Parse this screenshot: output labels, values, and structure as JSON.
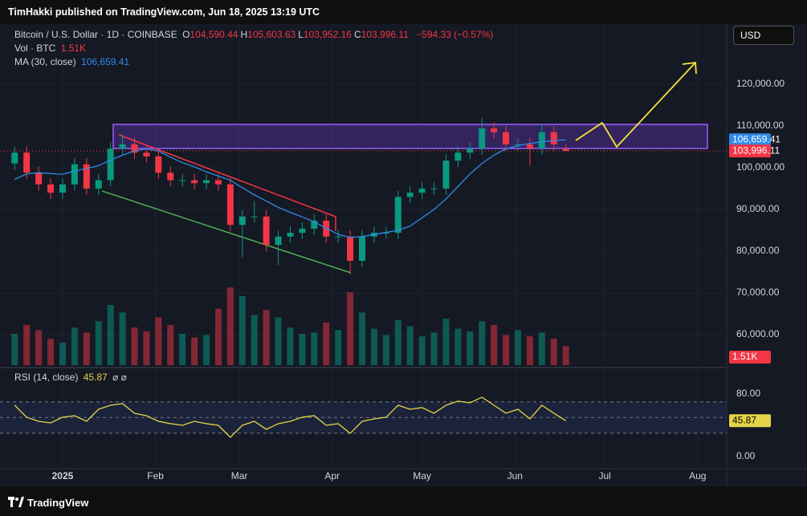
{
  "header": {
    "publisher": "TimHakki published on TradingView.com, Jun 18, 2025 13:19 UTC",
    "currency": "USD",
    "footer": "TradingView"
  },
  "chart_data": [
    {
      "type": "candlestick",
      "title": "Bitcoin / U.S. Dollar · 1D · COINBASE",
      "ohlc_legend": [
        {
          "label": "O",
          "value": "104,590.44"
        },
        {
          "label": "H",
          "value": "105,603.63"
        },
        {
          "label": "L",
          "value": "103,952.16"
        },
        {
          "label": "C",
          "value": "103,996.11"
        }
      ],
      "change": "−594.33 (−0.57%)",
      "last_label": "103,996.11",
      "up_color": "#089981",
      "down_color": "#f23645",
      "x": [
        -16,
        -12,
        -8,
        -4,
        0,
        4,
        8,
        12,
        16,
        20,
        24,
        28,
        32,
        36,
        40,
        44,
        48,
        52,
        56,
        60,
        64,
        68,
        72,
        76,
        80,
        84,
        88,
        92,
        96,
        100,
        104,
        108,
        112,
        116,
        120,
        124,
        128,
        132,
        136,
        140,
        144,
        148,
        152,
        156,
        160,
        164,
        168
      ],
      "open": [
        101000,
        103600,
        98800,
        96000,
        94000,
        96000,
        100800,
        95000,
        97000,
        104600,
        105600,
        103600,
        102700,
        98800,
        97000,
        97000,
        96300,
        97000,
        96000,
        86300,
        88300,
        88300,
        81500,
        83500,
        84400,
        85400,
        87300,
        83500,
        83500,
        77700,
        83500,
        84400,
        84400,
        93000,
        94000,
        95000,
        95000,
        101700,
        103600,
        104600,
        109400,
        108500,
        105600,
        105600,
        104600,
        108500,
        104590.44
      ],
      "high": [
        105100,
        105100,
        100300,
        97500,
        97500,
        102300,
        102300,
        98500,
        106100,
        108000,
        107100,
        105100,
        104200,
        100300,
        98500,
        98500,
        98500,
        98500,
        97500,
        89800,
        92000,
        89800,
        85000,
        85900,
        86900,
        88800,
        88800,
        85000,
        85000,
        85000,
        85900,
        85900,
        94500,
        95500,
        96500,
        96500,
        103200,
        105100,
        106100,
        111900,
        110900,
        110000,
        107100,
        107100,
        110500,
        110000,
        105603.63
      ],
      "low": [
        99500,
        97300,
        94500,
        92500,
        92500,
        94500,
        93500,
        93500,
        95500,
        103100,
        102100,
        101200,
        97300,
        95500,
        95500,
        94800,
        94800,
        94500,
        84800,
        78500,
        86800,
        80000,
        76600,
        82000,
        82900,
        83900,
        82000,
        82000,
        74500,
        76200,
        82000,
        82900,
        82900,
        91500,
        92500,
        93500,
        93500,
        100200,
        102100,
        103100,
        107000,
        104100,
        104100,
        100500,
        103100,
        104100,
        103952.16
      ],
      "close": [
        103600,
        98800,
        96000,
        94000,
        96000,
        100800,
        95000,
        97000,
        104600,
        105600,
        103600,
        102700,
        98800,
        97000,
        97000,
        96300,
        97000,
        96000,
        86300,
        88300,
        88300,
        81500,
        83500,
        84400,
        85400,
        87300,
        83500,
        83500,
        77700,
        83500,
        84400,
        84400,
        93000,
        94000,
        95000,
        95000,
        101700,
        103600,
        104600,
        109400,
        108500,
        105600,
        105600,
        104600,
        108500,
        105600,
        103996.11
      ],
      "series": [
        {
          "name": "MA (30, close)",
          "color": "#2f8ae8",
          "value_label": "106,659.41",
          "values": [
            97200,
            98500,
            98800,
            98600,
            98400,
            99200,
            99800,
            100500,
            101800,
            103000,
            104000,
            104500,
            104000,
            102500,
            101200,
            100200,
            99000,
            98000,
            97000,
            95200,
            93500,
            92000,
            90500,
            89300,
            88200,
            87000,
            85500,
            84000,
            83300,
            83500,
            84000,
            84500,
            85000,
            86000,
            88000,
            90000,
            92500,
            95500,
            98500,
            101000,
            103000,
            104500,
            105300,
            105800,
            106200,
            106500,
            106659.41
          ]
        }
      ],
      "xlim": [
        -20.9,
        221.7
      ],
      "xticks": [
        {
          "value": 0,
          "label": "2025"
        },
        {
          "value": 31,
          "label": "Feb"
        },
        {
          "value": 59,
          "label": "Mar"
        },
        {
          "value": 90,
          "label": "Apr"
        },
        {
          "value": 120,
          "label": "May"
        },
        {
          "value": 151,
          "label": "Jun"
        },
        {
          "value": 181,
          "label": "Jul"
        },
        {
          "value": 212,
          "label": "Aug"
        }
      ],
      "ylim": [
        52700,
        134400
      ],
      "yticks": [
        {
          "value": 60000,
          "label": "60,000.00"
        },
        {
          "value": 70000,
          "label": "70,000.00"
        },
        {
          "value": 80000,
          "label": "80,000.00"
        },
        {
          "value": 90000,
          "label": "90,000.00"
        },
        {
          "value": 100000,
          "label": "100,000.00"
        },
        {
          "value": 110000,
          "label": "110,000.00"
        },
        {
          "value": 120000,
          "label": "120,000.00"
        }
      ],
      "grid": true
    },
    {
      "type": "bar",
      "title": "Vol · BTC",
      "value_label": "1.51K",
      "values": [
        2.5,
        3.2,
        2.8,
        2.1,
        1.8,
        3.0,
        2.6,
        3.5,
        4.8,
        4.2,
        3.0,
        2.7,
        3.8,
        3.2,
        2.5,
        2.2,
        2.4,
        4.5,
        6.2,
        5.5,
        4.0,
        4.4,
        3.8,
        3.0,
        2.5,
        2.6,
        3.4,
        2.8,
        5.8,
        4.2,
        2.9,
        2.4,
        3.6,
        3.1,
        2.3,
        2.6,
        3.7,
        2.9,
        2.7,
        3.5,
        3.2,
        2.4,
        2.8,
        2.3,
        2.6,
        2.1,
        1.51
      ],
      "ylim": [
        0,
        8
      ]
    },
    {
      "type": "line",
      "title": "RSI (14, close)",
      "value_label": "45.87",
      "icons": "⌀  ⌀",
      "color": "#e6d34a",
      "values": [
        65.6,
        50.3,
        45.1,
        43.1,
        50.3,
        52.3,
        45.1,
        60.5,
        65.6,
        67.7,
        55.4,
        52.3,
        45.1,
        42.1,
        40,
        45.1,
        42.1,
        40,
        24.6,
        40,
        45.1,
        34.9,
        42.1,
        45.1,
        50.3,
        52.3,
        40,
        42.1,
        29.7,
        45.1,
        48.2,
        50.3,
        65.6,
        60.5,
        62.6,
        55.4,
        65.6,
        70.8,
        68.7,
        75.9,
        65.6,
        55.4,
        60.5,
        48.2,
        65.6,
        55.4,
        45.87
      ],
      "levels": [
        70,
        50,
        30
      ],
      "ylim": [
        -16.4,
        109.7
      ],
      "yticks": [
        {
          "value": 0,
          "label": "0.00"
        },
        {
          "value": 80,
          "label": "80.00"
        }
      ]
    }
  ]
}
